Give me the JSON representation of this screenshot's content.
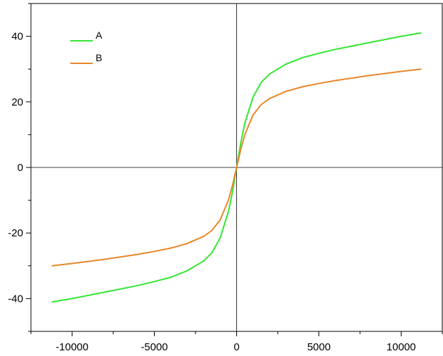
{
  "chart_data": {
    "type": "line",
    "title": "",
    "xlabel": "",
    "ylabel": "",
    "xlim": [
      -12500,
      12500
    ],
    "ylim": [
      -50,
      50
    ],
    "xticks": [
      -10000,
      -5000,
      0,
      5000,
      10000
    ],
    "xtick_labels": [
      "-10000",
      "-5000",
      "0",
      "5000",
      "10000"
    ],
    "yticks": [
      -40,
      -20,
      0,
      20,
      40
    ],
    "ytick_labels": [
      "-40",
      "-20",
      "0",
      "20",
      "40"
    ],
    "grid": false,
    "zero_lines": true,
    "legend_position": "top-left",
    "series": [
      {
        "name": "A",
        "color": "#33e633",
        "x": [
          -11200,
          -10000,
          -8000,
          -6000,
          -5000,
          -4000,
          -3000,
          -2000,
          -1500,
          -1000,
          -500,
          -250,
          0,
          250,
          500,
          1000,
          1500,
          2000,
          3000,
          4000,
          5000,
          6000,
          8000,
          10000,
          11200
        ],
        "y": [
          -41,
          -40,
          -38,
          -36,
          -34.8,
          -33.5,
          -31.5,
          -28.5,
          -26,
          -21.5,
          -13.5,
          -7.5,
          0,
          7.5,
          13.5,
          21.5,
          26,
          28.5,
          31.5,
          33.5,
          34.8,
          36,
          38,
          40,
          41
        ]
      },
      {
        "name": "B",
        "color": "#e8872a",
        "x": [
          -11200,
          -10000,
          -8000,
          -6000,
          -5000,
          -4000,
          -3000,
          -2000,
          -1500,
          -1000,
          -500,
          -250,
          0,
          250,
          500,
          1000,
          1500,
          2000,
          3000,
          4000,
          5000,
          6000,
          8000,
          10000,
          11200
        ],
        "y": [
          -30,
          -29.3,
          -28,
          -26.5,
          -25.6,
          -24.6,
          -23.2,
          -21,
          -19.2,
          -16,
          -10,
          -5.5,
          0,
          5.5,
          10,
          16,
          19.2,
          21,
          23.2,
          24.6,
          25.6,
          26.5,
          28,
          29.3,
          30
        ]
      }
    ]
  }
}
